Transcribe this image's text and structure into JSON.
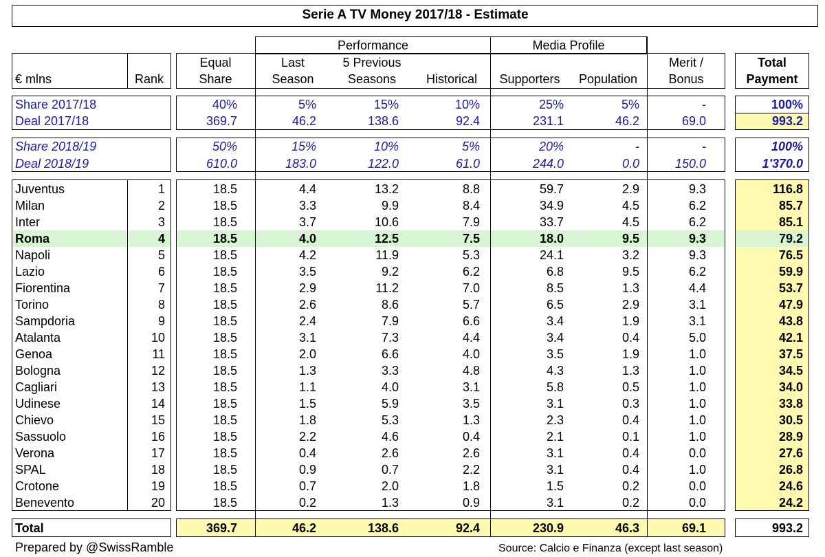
{
  "title": "Serie A TV Money 2017/18 - Estimate",
  "headers": {
    "currency": "€ mlns",
    "rank": "Rank",
    "equal_share": [
      "Equal",
      "Share"
    ],
    "group_performance": "Performance",
    "last_season": [
      "Last",
      "Season"
    ],
    "five_prev": [
      "5 Previous",
      "Seasons"
    ],
    "historical": "Historical",
    "group_media": "Media Profile",
    "supporters": "Supporters",
    "population": "Population",
    "merit": [
      "Merit /",
      "Bonus"
    ],
    "total": [
      "Total",
      "Payment"
    ]
  },
  "deal_rows": [
    {
      "label": "Share 2017/18",
      "vals": [
        "40%",
        "5%",
        "15%",
        "10%",
        "25%",
        "5%",
        "-"
      ],
      "total": "100%",
      "italic": false
    },
    {
      "label": "Deal 2017/18",
      "vals": [
        "369.7",
        "46.2",
        "138.6",
        "92.4",
        "231.1",
        "46.2",
        "69.0"
      ],
      "total": "993.2",
      "italic": false
    },
    {
      "label": "Share 2018/19",
      "vals": [
        "50%",
        "15%",
        "10%",
        "5%",
        "20%",
        "-",
        "-"
      ],
      "total": "100%",
      "italic": true
    },
    {
      "label": "Deal 2018/19",
      "vals": [
        "610.0",
        "183.0",
        "122.0",
        "61.0",
        "244.0",
        "0.0",
        "150.0"
      ],
      "total": "1'370.0",
      "italic": true
    }
  ],
  "clubs": [
    {
      "name": "Juventus",
      "rank": "1",
      "vals": [
        "18.5",
        "4.4",
        "13.2",
        "8.8",
        "59.7",
        "2.9",
        "9.3"
      ],
      "total": "116.8"
    },
    {
      "name": "Milan",
      "rank": "2",
      "vals": [
        "18.5",
        "3.3",
        "9.9",
        "8.4",
        "34.9",
        "4.5",
        "6.2"
      ],
      "total": "85.7"
    },
    {
      "name": "Inter",
      "rank": "3",
      "vals": [
        "18.5",
        "3.7",
        "10.6",
        "7.9",
        "33.7",
        "4.5",
        "6.2"
      ],
      "total": "85.1"
    },
    {
      "name": "Roma",
      "rank": "4",
      "vals": [
        "18.5",
        "4.0",
        "12.5",
        "7.5",
        "18.0",
        "9.5",
        "9.3"
      ],
      "total": "79.2",
      "highlight": true
    },
    {
      "name": "Napoli",
      "rank": "5",
      "vals": [
        "18.5",
        "4.2",
        "11.9",
        "5.3",
        "24.1",
        "3.2",
        "9.3"
      ],
      "total": "76.5"
    },
    {
      "name": "Lazio",
      "rank": "6",
      "vals": [
        "18.5",
        "3.5",
        "9.2",
        "6.2",
        "6.8",
        "9.5",
        "6.2"
      ],
      "total": "59.9"
    },
    {
      "name": "Fiorentina",
      "rank": "7",
      "vals": [
        "18.5",
        "2.9",
        "11.2",
        "7.0",
        "8.5",
        "1.3",
        "4.4"
      ],
      "total": "53.7"
    },
    {
      "name": "Torino",
      "rank": "8",
      "vals": [
        "18.5",
        "2.6",
        "8.6",
        "5.7",
        "6.5",
        "2.9",
        "3.1"
      ],
      "total": "47.9"
    },
    {
      "name": "Sampdoria",
      "rank": "9",
      "vals": [
        "18.5",
        "2.4",
        "7.9",
        "6.6",
        "3.4",
        "1.9",
        "3.1"
      ],
      "total": "43.8"
    },
    {
      "name": "Atalanta",
      "rank": "10",
      "vals": [
        "18.5",
        "3.1",
        "7.3",
        "4.4",
        "3.4",
        "0.4",
        "5.0"
      ],
      "total": "42.1"
    },
    {
      "name": "Genoa",
      "rank": "11",
      "vals": [
        "18.5",
        "2.0",
        "6.6",
        "4.0",
        "3.5",
        "1.9",
        "1.0"
      ],
      "total": "37.5"
    },
    {
      "name": "Bologna",
      "rank": "12",
      "vals": [
        "18.5",
        "1.3",
        "3.3",
        "4.8",
        "4.3",
        "1.3",
        "1.0"
      ],
      "total": "34.5"
    },
    {
      "name": "Cagliari",
      "rank": "13",
      "vals": [
        "18.5",
        "1.1",
        "4.0",
        "3.1",
        "5.8",
        "0.5",
        "1.0"
      ],
      "total": "34.0"
    },
    {
      "name": "Udinese",
      "rank": "14",
      "vals": [
        "18.5",
        "1.5",
        "5.9",
        "3.5",
        "3.1",
        "0.3",
        "1.0"
      ],
      "total": "33.8"
    },
    {
      "name": "Chievo",
      "rank": "15",
      "vals": [
        "18.5",
        "1.8",
        "5.3",
        "1.3",
        "2.3",
        "0.4",
        "1.0"
      ],
      "total": "30.5"
    },
    {
      "name": "Sassuolo",
      "rank": "16",
      "vals": [
        "18.5",
        "2.2",
        "4.6",
        "0.4",
        "2.1",
        "0.1",
        "1.0"
      ],
      "total": "28.9"
    },
    {
      "name": "Verona",
      "rank": "17",
      "vals": [
        "18.5",
        "0.4",
        "2.6",
        "2.6",
        "3.1",
        "0.4",
        "0.0"
      ],
      "total": "27.6"
    },
    {
      "name": "SPAL",
      "rank": "18",
      "vals": [
        "18.5",
        "0.9",
        "0.7",
        "2.2",
        "3.1",
        "0.4",
        "1.0"
      ],
      "total": "26.8"
    },
    {
      "name": "Crotone",
      "rank": "19",
      "vals": [
        "18.5",
        "0.7",
        "2.0",
        "1.8",
        "1.5",
        "0.2",
        "0.0"
      ],
      "total": "24.6"
    },
    {
      "name": "Benevento",
      "rank": "20",
      "vals": [
        "18.5",
        "0.2",
        "1.3",
        "0.9",
        "3.1",
        "0.2",
        "0.0"
      ],
      "total": "24.2"
    }
  ],
  "totals": {
    "label": "Total",
    "vals": [
      "369.7",
      "46.2",
      "138.6",
      "92.4",
      "230.9",
      "46.3",
      "69.1"
    ],
    "total": "993.2"
  },
  "footer": {
    "left": "Prepared by @SwissRamble",
    "right": "Source: Calcio e Finanza (except last season)"
  },
  "colors": {
    "highlight": "#d7f5d3",
    "total_fill": "#fffab0",
    "deal_text": "#1a1aa6"
  },
  "chart_data": {
    "type": "table",
    "title": "Serie A TV Money 2017/18 - Estimate",
    "columns": [
      "Equal Share",
      "Last Season",
      "5 Previous Seasons",
      "Historical",
      "Supporters",
      "Population",
      "Merit / Bonus",
      "Total Payment"
    ]
  }
}
